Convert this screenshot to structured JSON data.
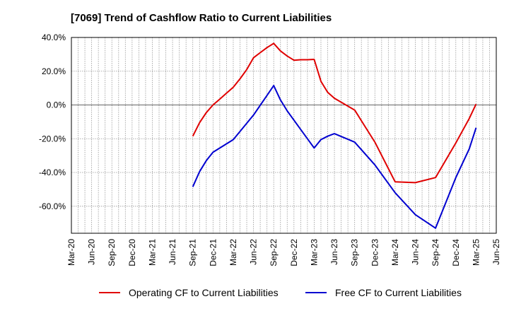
{
  "chart_data": {
    "type": "line",
    "title": "[7069]  Trend of Cashflow Ratio to Current Liabilities",
    "xlabel": "",
    "ylabel": "",
    "x_ticks": [
      "Mar-20",
      "Jun-20",
      "Sep-20",
      "Dec-20",
      "Mar-21",
      "Jun-21",
      "Sep-21",
      "Dec-21",
      "Mar-22",
      "Jun-22",
      "Sep-22",
      "Dec-22",
      "Mar-23",
      "Jun-23",
      "Sep-23",
      "Dec-23",
      "Mar-24",
      "Jun-24",
      "Sep-24",
      "Dec-24",
      "Mar-25",
      "Jun-25"
    ],
    "y_ticks": [
      40,
      20,
      0,
      -20,
      -40,
      -60
    ],
    "y_tick_labels": [
      "40.0%",
      "20.0%",
      "0.0%",
      "-20.0%",
      "-40.0%",
      "-60.0%"
    ],
    "ylim": [
      -76,
      40
    ],
    "grid": true,
    "legend_position": "bottom",
    "series": [
      {
        "name": "Operating CF to Current Liabilities",
        "color": "#e00000",
        "points": [
          [
            "Sep-21",
            -18.5
          ],
          [
            "Oct-21",
            -10.5
          ],
          [
            "Nov-21",
            -4.5
          ],
          [
            "Dec-21",
            0.0
          ],
          [
            "Jan-22",
            3.5
          ],
          [
            "Feb-22",
            7.0
          ],
          [
            "Mar-22",
            10.5
          ],
          [
            "Apr-22",
            15.5
          ],
          [
            "May-22",
            21.0
          ],
          [
            "Jun-22",
            28.0
          ],
          [
            "Jul-22",
            31.0
          ],
          [
            "Aug-22",
            34.0
          ],
          [
            "Sep-22",
            36.5
          ],
          [
            "Oct-22",
            32.0
          ],
          [
            "Nov-22",
            29.0
          ],
          [
            "Dec-22",
            26.5
          ],
          [
            "Jan-23",
            26.8
          ],
          [
            "Feb-23",
            26.8
          ],
          [
            "Mar-23",
            27.0
          ],
          [
            "Apr-23",
            14.0
          ],
          [
            "May-23",
            7.5
          ],
          [
            "Jun-23",
            4.0
          ],
          [
            "Sep-23",
            -3.0
          ],
          [
            "Dec-23",
            -22.0
          ],
          [
            "Mar-24",
            -45.5
          ],
          [
            "Jun-24",
            -46.0
          ],
          [
            "Sep-24",
            -43.0
          ],
          [
            "Dec-24",
            -22.5
          ],
          [
            "Feb-25",
            -8.0
          ],
          [
            "Mar-25",
            0.5
          ]
        ]
      },
      {
        "name": "Free CF to Current Liabilities",
        "color": "#0000d0",
        "points": [
          [
            "Sep-21",
            -48.5
          ],
          [
            "Oct-21",
            -39.5
          ],
          [
            "Nov-21",
            -33.0
          ],
          [
            "Dec-21",
            -28.0
          ],
          [
            "Mar-22",
            -20.5
          ],
          [
            "Jun-22",
            -6.0
          ],
          [
            "Sep-22",
            11.5
          ],
          [
            "Oct-22",
            3.0
          ],
          [
            "Nov-22",
            -3.5
          ],
          [
            "Mar-23",
            -25.5
          ],
          [
            "Apr-23",
            -20.5
          ],
          [
            "May-23",
            -18.5
          ],
          [
            "Jun-23",
            -17.0
          ],
          [
            "Sep-23",
            -22.0
          ],
          [
            "Dec-23",
            -35.5
          ],
          [
            "Mar-24",
            -52.0
          ],
          [
            "Jun-24",
            -65.0
          ],
          [
            "Sep-24",
            -73.0
          ],
          [
            "Dec-24",
            -43.0
          ],
          [
            "Feb-25",
            -26.0
          ],
          [
            "Mar-25",
            -13.5
          ]
        ]
      }
    ]
  }
}
